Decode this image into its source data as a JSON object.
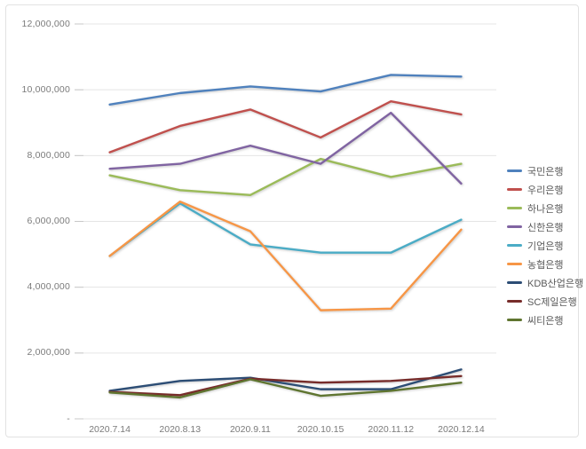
{
  "window": {
    "background_color": "#ffffff",
    "frame_border_color": "#e2e2e2"
  },
  "chart_data": {
    "type": "line",
    "title": "",
    "xlabel": "",
    "ylabel": "",
    "categories": [
      "2020.7.14",
      "2020.8.13",
      "2020.9.11",
      "2020.10.15",
      "2020.11.12",
      "2020.12.14"
    ],
    "series": [
      {
        "name": "국민은행",
        "color": "#4F81BD",
        "values": [
          9550000,
          9900000,
          10100000,
          9950000,
          10450000,
          10400000
        ]
      },
      {
        "name": "우리은행",
        "color": "#C0504D",
        "values": [
          8100000,
          8900000,
          9400000,
          8550000,
          9650000,
          9250000
        ]
      },
      {
        "name": "하나은행",
        "color": "#9BBB59",
        "values": [
          7400000,
          6950000,
          6800000,
          7900000,
          7350000,
          7750000
        ]
      },
      {
        "name": "신한은행",
        "color": "#8064A2",
        "values": [
          7600000,
          7750000,
          8300000,
          7750000,
          9300000,
          7150000
        ]
      },
      {
        "name": "기업은행",
        "color": "#4BACC6",
        "values": [
          4950000,
          6550000,
          5300000,
          5050000,
          5050000,
          6050000
        ]
      },
      {
        "name": "농협은행",
        "color": "#F79646",
        "values": [
          4950000,
          6600000,
          5700000,
          3300000,
          3350000,
          5750000
        ]
      },
      {
        "name": "KDB산업은행",
        "color": "#2C4D75",
        "values": [
          850000,
          1150000,
          1250000,
          900000,
          900000,
          1500000
        ]
      },
      {
        "name": "SC제일은행",
        "color": "#772C2A",
        "values": [
          820000,
          720000,
          1220000,
          1100000,
          1150000,
          1300000
        ]
      },
      {
        "name": "씨티은행",
        "color": "#5F7530",
        "values": [
          800000,
          650000,
          1200000,
          700000,
          850000,
          1100000
        ]
      }
    ],
    "ylim": [
      0,
      12000000
    ],
    "ytick_step": 2000000,
    "ytick_labels_top_to_bottom": [
      "12,000,000",
      "10,000,000",
      "8,000,000",
      "6,000,000",
      "4,000,000",
      "2,000,000",
      "-"
    ],
    "grid": true,
    "gridline_color": "#e5e5e5",
    "tick_color": "#c8c8c8",
    "axis_label_color": "#7a7a7a",
    "legend_position": "right",
    "legend_text_color": "#595959"
  }
}
